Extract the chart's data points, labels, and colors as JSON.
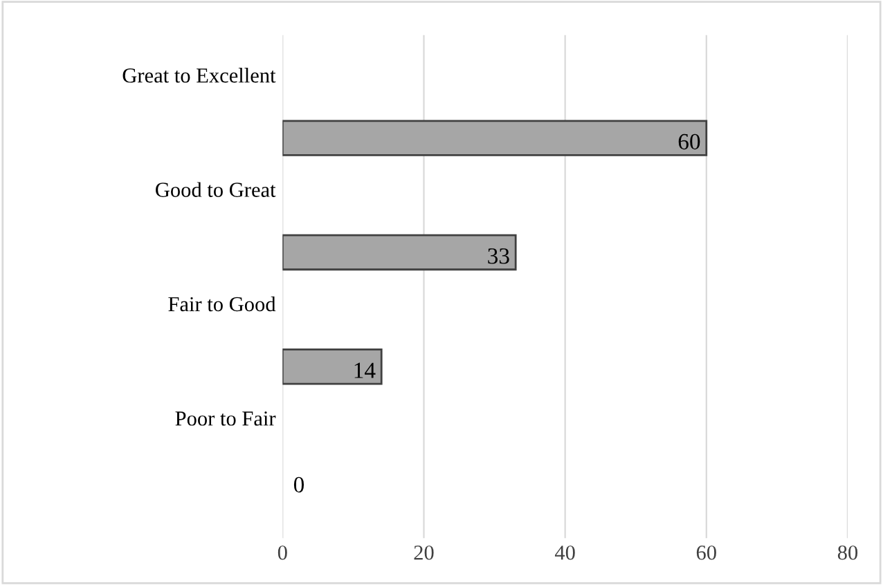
{
  "chart_data": {
    "type": "bar",
    "orientation": "horizontal",
    "categories": [
      "Great to Excellent",
      "Good to Great",
      "Fair to Good",
      "Poor to Fair"
    ],
    "values": [
      60,
      33,
      14,
      0
    ],
    "color": "#a6a6a6",
    "xlim": [
      0,
      80
    ],
    "xticks": [
      0,
      20,
      40,
      60,
      80
    ],
    "grid": "x",
    "data_labels": true
  }
}
